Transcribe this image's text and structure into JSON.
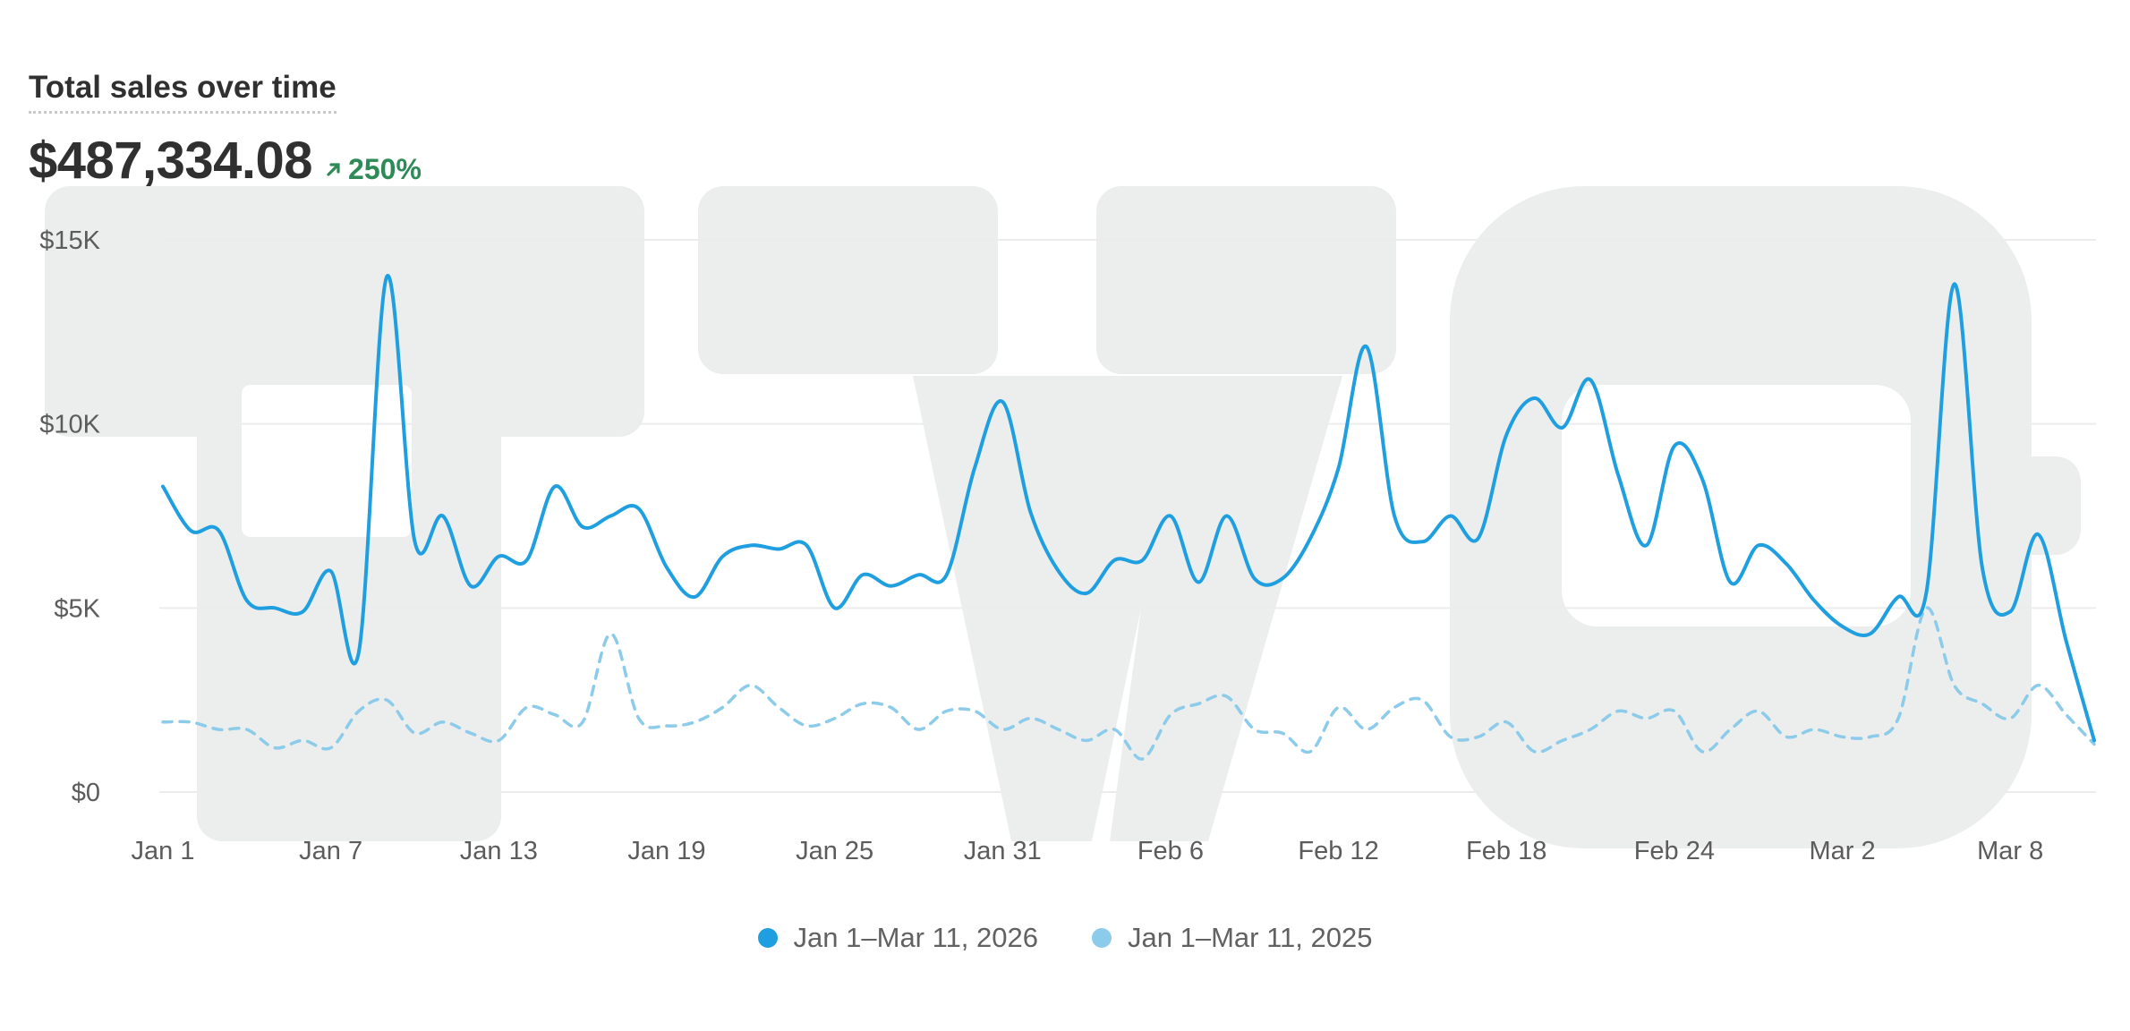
{
  "header": {
    "title": "Total sales over time",
    "value": "$487,334.08",
    "change": "250%",
    "change_color": "#2e8a57"
  },
  "colors": {
    "series_current": "#1f9fdf",
    "series_previous": "#8ccbea",
    "grid": "#ececec",
    "watermark": "#eceeed"
  },
  "chart_data": {
    "type": "line",
    "title": "Total sales over time",
    "xlabel": "",
    "ylabel": "",
    "ylim": [
      0,
      15000
    ],
    "yticks": [
      0,
      5000,
      10000,
      15000
    ],
    "ytick_labels": [
      "$0",
      "$5K",
      "$10K",
      "$15K"
    ],
    "x_tick_labels": [
      "Jan 1",
      "Jan 7",
      "Jan 13",
      "Jan 19",
      "Jan 25",
      "Jan 31",
      "Feb 6",
      "Feb 12",
      "Feb 18",
      "Feb 24",
      "Mar 2",
      "Mar 8"
    ],
    "x_tick_every": 6,
    "grid": true,
    "legend_position": "bottom",
    "series": [
      {
        "name": "Jan 1–Mar 11, 2026",
        "style": "solid",
        "values": [
          8300,
          7100,
          7100,
          5200,
          5000,
          4900,
          6000,
          3800,
          14000,
          6800,
          7500,
          5600,
          6400,
          6300,
          8300,
          7200,
          7500,
          7700,
          6100,
          5300,
          6400,
          6700,
          6600,
          6700,
          5000,
          5900,
          5600,
          5900,
          5900,
          8800,
          10600,
          7600,
          6000,
          5400,
          6300,
          6300,
          7500,
          5700,
          7500,
          5800,
          5800,
          6900,
          8800,
          12100,
          7500,
          6800,
          7500,
          6900,
          9700,
          10700,
          9900,
          11200,
          8600,
          6700,
          9400,
          8500,
          5700,
          6700,
          6200,
          5200,
          4500,
          4300,
          5300,
          5400,
          13800,
          6100,
          4900,
          7000,
          4100,
          1400
        ]
      },
      {
        "name": "Jan 1–Mar 11, 2025",
        "style": "dashed",
        "values": [
          1900,
          1900,
          1700,
          1700,
          1200,
          1400,
          1200,
          2200,
          2500,
          1600,
          1900,
          1600,
          1400,
          2300,
          2100,
          1900,
          4300,
          2000,
          1800,
          1900,
          2300,
          2900,
          2300,
          1800,
          2000,
          2400,
          2300,
          1700,
          2200,
          2200,
          1700,
          2000,
          1700,
          1400,
          1700,
          900,
          2100,
          2400,
          2600,
          1700,
          1600,
          1100,
          2300,
          1700,
          2300,
          2500,
          1500,
          1500,
          1900,
          1100,
          1400,
          1700,
          2200,
          2000,
          2200,
          1100,
          1700,
          2200,
          1500,
          1700,
          1500,
          1500,
          2000,
          5000,
          2900,
          2400,
          2000,
          2900,
          2100,
          1300
        ]
      }
    ]
  }
}
